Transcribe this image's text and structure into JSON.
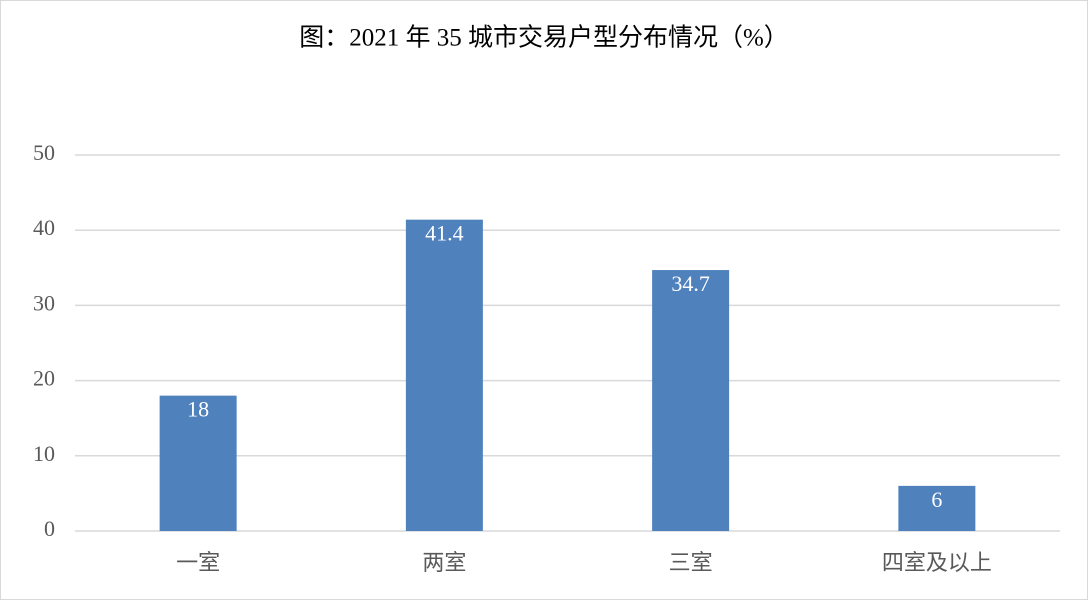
{
  "chart_data": {
    "type": "bar",
    "title": "图：2021 年 35 城市交易户型分布情况（%）",
    "categories": [
      "一室",
      "两室",
      "三室",
      "四室及以上"
    ],
    "values": [
      18,
      41.4,
      34.7,
      6
    ],
    "color": "#4f81bd",
    "ylim": [
      0,
      50
    ],
    "yticks": [
      0,
      10,
      20,
      30,
      40,
      50
    ],
    "grid": true
  }
}
